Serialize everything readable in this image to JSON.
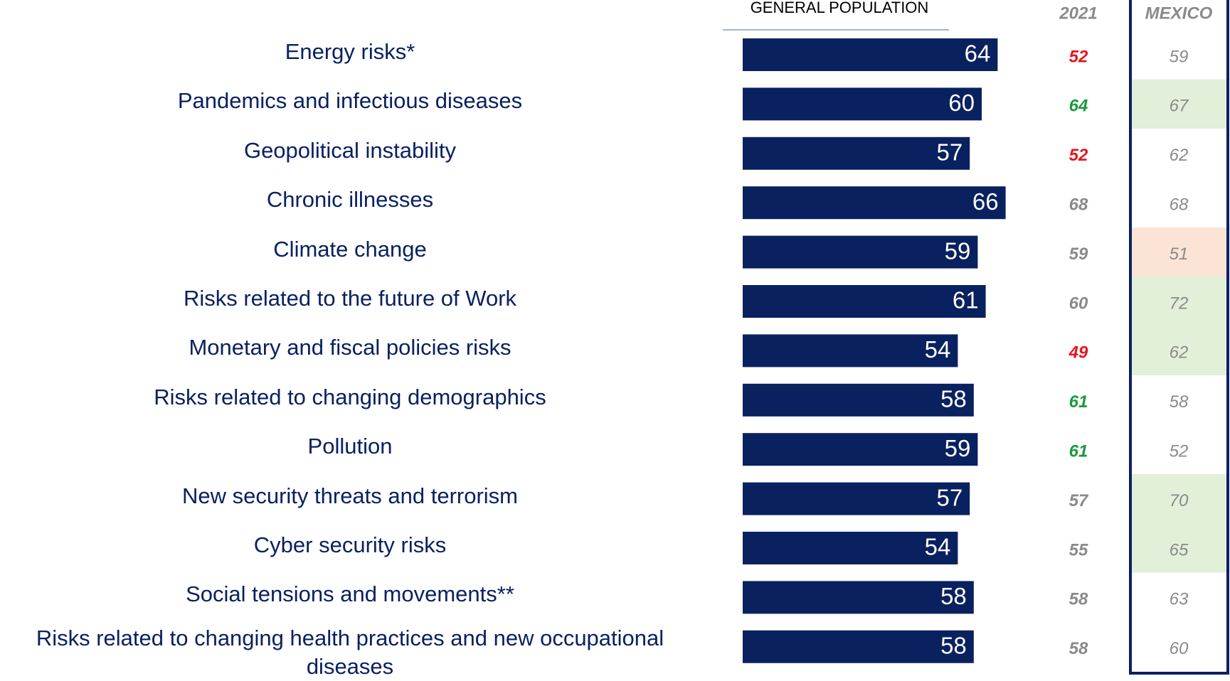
{
  "chart_data": {
    "type": "bar",
    "orientation": "horizontal",
    "header": "GENERAL POPULATION",
    "categories": [
      "Energy risks*",
      "Pandemics and infectious diseases",
      "Geopolitical instability",
      "Chronic illnesses",
      "Climate change",
      "Risks related to the future of Work",
      "Monetary and fiscal policies risks",
      "Risks related to changing demographics",
      "Pollution",
      "New security threats and terrorism",
      "Cyber security risks",
      "Social tensions and movements**",
      "Risks related to changing health practices and new occupational diseases"
    ],
    "values": [
      64,
      60,
      57,
      66,
      59,
      61,
      54,
      58,
      59,
      57,
      54,
      58,
      58
    ],
    "color": "#0a2160",
    "xlim": [
      0,
      100
    ],
    "columns": [
      {
        "name": "2021",
        "values": [
          52,
          64,
          52,
          68,
          59,
          60,
          49,
          61,
          61,
          57,
          55,
          58,
          58
        ],
        "colors": [
          "#e8141c",
          "#1a9a3a",
          "#e8141c",
          "#8a8a8a",
          "#8a8a8a",
          "#8a8a8a",
          "#e8141c",
          "#1a9a3a",
          "#1a9a3a",
          "#8a8a8a",
          "#8a8a8a",
          "#8a8a8a",
          "#8a8a8a"
        ]
      },
      {
        "name": "MEXICO",
        "values": [
          59,
          67,
          62,
          68,
          51,
          72,
          62,
          58,
          52,
          70,
          65,
          63,
          60
        ],
        "backgrounds": [
          "#ffffff",
          "#e2efd9",
          "#ffffff",
          "#ffffff",
          "#fbe4d5",
          "#e2efd9",
          "#e2efd9",
          "#ffffff",
          "#ffffff",
          "#e2efd9",
          "#e2efd9",
          "#ffffff",
          "#ffffff"
        ]
      }
    ]
  }
}
